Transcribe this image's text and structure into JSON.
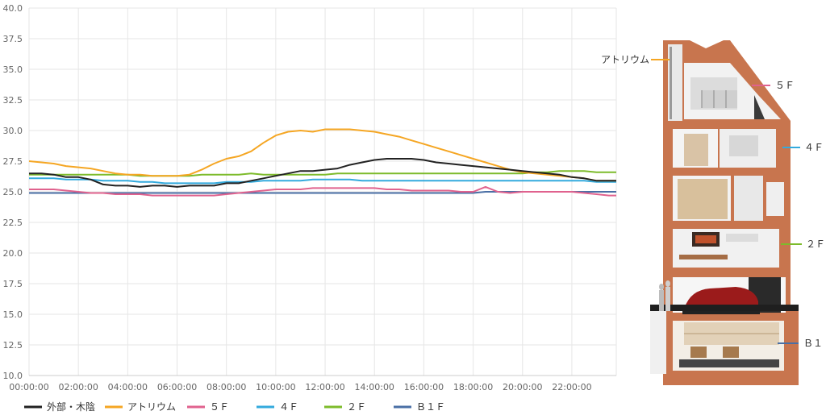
{
  "chart_data": {
    "type": "line",
    "ylim": [
      10.0,
      40.0
    ],
    "yticks": [
      "10.0",
      "12.5",
      "15.0",
      "17.5",
      "20.0",
      "22.5",
      "25.0",
      "27.5",
      "30.0",
      "32.5",
      "35.0",
      "37.5",
      "40.0"
    ],
    "x_range_hours": [
      0,
      23.8
    ],
    "xticks": [
      "00:00:00",
      "02:00:00",
      "04:00:00",
      "06:00:00",
      "08:00:00",
      "10:00:00",
      "12:00:00",
      "14:00:00",
      "16:00:00",
      "18:00:00",
      "20:00:00",
      "22:00:00"
    ],
    "grid": true,
    "legend_position": "bottom",
    "x_hours": [
      0,
      0.5,
      1,
      1.5,
      2,
      2.5,
      3,
      3.5,
      4,
      4.5,
      5,
      5.5,
      6,
      6.5,
      7,
      7.5,
      8,
      8.5,
      9,
      9.5,
      10,
      10.5,
      11,
      11.5,
      12,
      12.5,
      13,
      13.5,
      14,
      14.5,
      15,
      15.5,
      16,
      16.5,
      17,
      17.5,
      18,
      18.5,
      19,
      19.5,
      20,
      20.5,
      21,
      21.5,
      22,
      22.5,
      23,
      23.5,
      23.8
    ],
    "series": [
      {
        "name": "外部・木陰",
        "color": "#222222",
        "values": [
          26.5,
          26.5,
          26.4,
          26.2,
          26.2,
          26.0,
          25.6,
          25.5,
          25.5,
          25.4,
          25.5,
          25.5,
          25.4,
          25.5,
          25.5,
          25.5,
          25.7,
          25.7,
          25.9,
          26.1,
          26.3,
          26.5,
          26.7,
          26.7,
          26.8,
          26.9,
          27.2,
          27.4,
          27.6,
          27.7,
          27.7,
          27.7,
          27.6,
          27.4,
          27.3,
          27.2,
          27.1,
          27.0,
          26.9,
          26.8,
          26.7,
          26.6,
          26.5,
          26.4,
          26.2,
          26.1,
          25.9,
          25.9,
          25.9
        ]
      },
      {
        "name": "アトリウム",
        "color": "#F5A623",
        "values": [
          27.5,
          27.4,
          27.3,
          27.1,
          27.0,
          26.9,
          26.7,
          26.5,
          26.4,
          26.4,
          26.3,
          26.3,
          26.3,
          26.4,
          26.8,
          27.3,
          27.7,
          27.9,
          28.3,
          29.0,
          29.6,
          29.9,
          30.0,
          29.9,
          30.1,
          30.1,
          30.1,
          30.0,
          29.9,
          29.7,
          29.5,
          29.2,
          28.9,
          28.6,
          28.3,
          28.0,
          27.7,
          27.4,
          27.1,
          26.8,
          26.6,
          26.5,
          26.4,
          26.3,
          26.2,
          26.1,
          25.9,
          25.9,
          25.9
        ]
      },
      {
        "name": "５Ｆ",
        "color": "#E0628E",
        "values": [
          25.2,
          25.2,
          25.2,
          25.1,
          25.0,
          24.9,
          24.9,
          24.8,
          24.8,
          24.8,
          24.7,
          24.7,
          24.7,
          24.7,
          24.7,
          24.7,
          24.8,
          24.9,
          25.0,
          25.1,
          25.2,
          25.2,
          25.2,
          25.3,
          25.3,
          25.3,
          25.3,
          25.3,
          25.3,
          25.2,
          25.2,
          25.1,
          25.1,
          25.1,
          25.1,
          25.0,
          25.0,
          25.4,
          25.0,
          24.9,
          25.0,
          25.0,
          25.0,
          25.0,
          25.0,
          24.9,
          24.8,
          24.7,
          24.7
        ]
      },
      {
        "name": "４Ｆ",
        "color": "#33AADD",
        "values": [
          26.1,
          26.1,
          26.1,
          26.0,
          26.0,
          26.0,
          25.9,
          25.9,
          25.9,
          25.8,
          25.8,
          25.7,
          25.7,
          25.7,
          25.7,
          25.7,
          25.8,
          25.8,
          25.8,
          25.9,
          25.9,
          25.9,
          25.9,
          26.0,
          26.0,
          26.0,
          26.0,
          25.9,
          25.9,
          25.9,
          25.9,
          25.9,
          25.9,
          25.9,
          25.9,
          25.9,
          25.9,
          25.9,
          25.9,
          25.9,
          25.9,
          25.9,
          25.9,
          25.9,
          25.9,
          25.9,
          25.8,
          25.8,
          25.8
        ]
      },
      {
        "name": "２Ｆ",
        "color": "#7DBB2B",
        "values": [
          26.4,
          26.4,
          26.4,
          26.4,
          26.4,
          26.4,
          26.4,
          26.4,
          26.4,
          26.3,
          26.3,
          26.3,
          26.3,
          26.3,
          26.4,
          26.4,
          26.4,
          26.4,
          26.5,
          26.4,
          26.4,
          26.4,
          26.4,
          26.4,
          26.4,
          26.5,
          26.5,
          26.5,
          26.5,
          26.5,
          26.5,
          26.5,
          26.5,
          26.5,
          26.5,
          26.5,
          26.5,
          26.5,
          26.5,
          26.5,
          26.5,
          26.6,
          26.6,
          26.7,
          26.7,
          26.7,
          26.6,
          26.6,
          26.6
        ]
      },
      {
        "name": "Ｂ１Ｆ",
        "color": "#4A6FA5",
        "values": [
          24.9,
          24.9,
          24.9,
          24.9,
          24.9,
          24.9,
          24.9,
          24.9,
          24.9,
          24.9,
          24.9,
          24.9,
          24.9,
          24.9,
          24.9,
          24.9,
          24.9,
          24.9,
          24.9,
          24.9,
          24.9,
          24.9,
          24.9,
          24.9,
          24.9,
          24.9,
          24.9,
          24.9,
          24.9,
          24.9,
          24.9,
          24.9,
          24.9,
          24.9,
          24.9,
          24.9,
          24.9,
          25.0,
          25.0,
          25.0,
          25.0,
          25.0,
          25.0,
          25.0,
          25.0,
          25.0,
          25.0,
          25.0,
          25.0
        ]
      }
    ]
  },
  "section_labels": {
    "atrium": "アトリウム",
    "f5": "５Ｆ",
    "f4": "４Ｆ",
    "f2": "２Ｆ",
    "b1": "Ｂ１"
  },
  "colors": {
    "wall": "#C8754E",
    "grid": "#e6e6e6",
    "axis": "#cccccc"
  }
}
